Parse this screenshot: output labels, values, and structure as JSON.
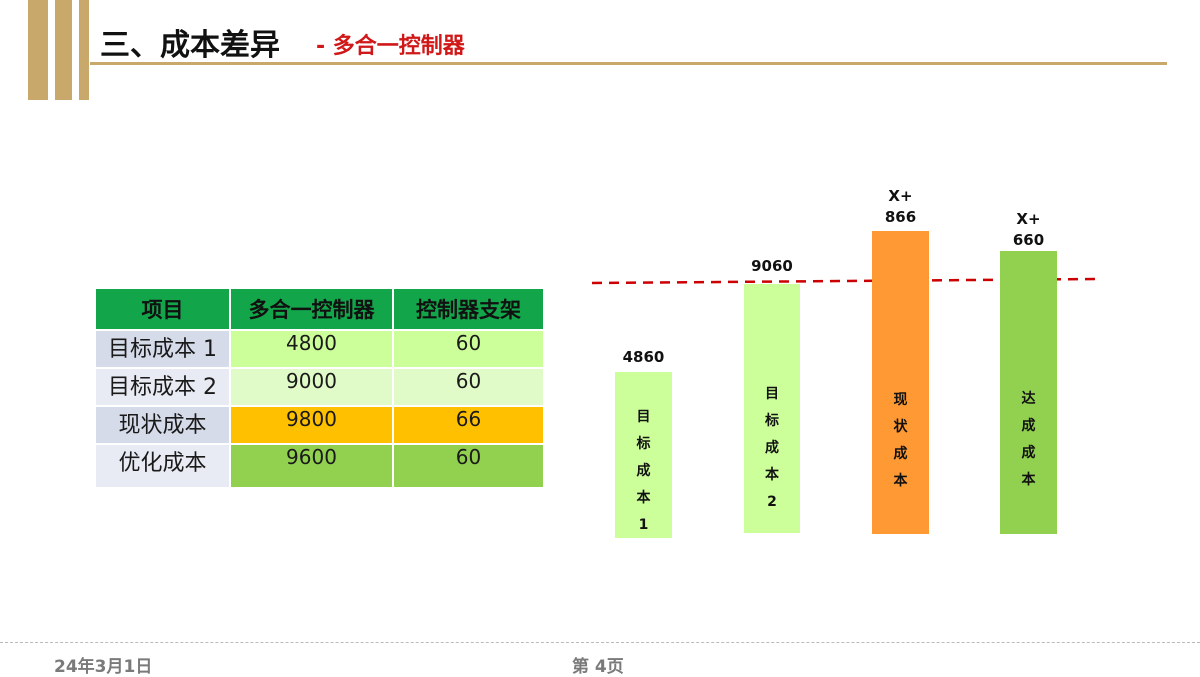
{
  "header": {
    "title": "三、成本差异",
    "subtitle": "- 多合一控制器"
  },
  "table": {
    "headers": [
      "项目",
      "多合一控制器",
      "控制器支架"
    ],
    "rows": [
      {
        "label": "目标成本 1",
        "controller": "4800",
        "bracket": "60"
      },
      {
        "label": "目标成本 2",
        "controller": "9000",
        "bracket": "60"
      },
      {
        "label": "现状成本",
        "controller": "9800",
        "bracket": "66"
      },
      {
        "label": "优化成本",
        "controller": "9600",
        "bracket": "60"
      }
    ]
  },
  "chart_data": {
    "type": "bar",
    "categories": [
      "目标成本1",
      "目标成本2",
      "现状成本",
      "达成成本"
    ],
    "value_labels": [
      "4860",
      "9060",
      "X+\n866",
      "X+\n660"
    ],
    "colors": [
      "#ccff99",
      "#ccff99",
      "#ff9933",
      "#92d050"
    ],
    "reference_line": {
      "style": "dashed",
      "color": "#cc0000"
    }
  },
  "footer": {
    "date": "24年3月1日",
    "page": "第 4页"
  }
}
